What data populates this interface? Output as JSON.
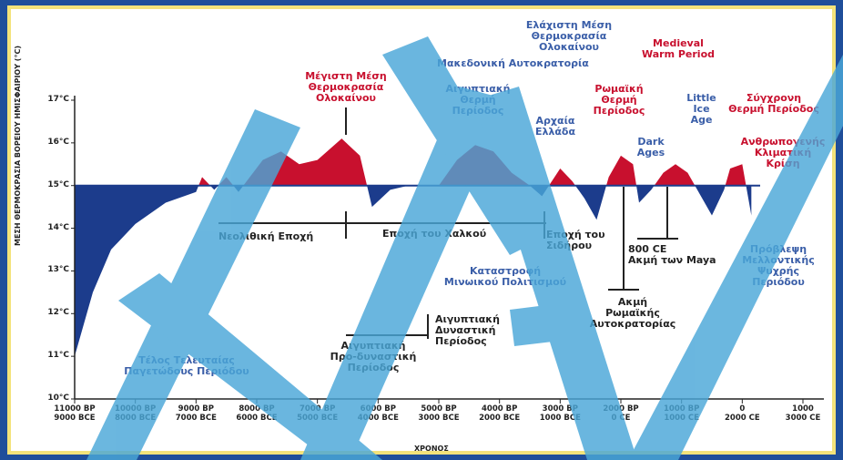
{
  "chart_data": {
    "type": "area",
    "ylabel": "ΜΕΣΗ ΘΕΡΜΟΚΡΑΣΙΑ ΒΟΡΕΙΟΥ ΗΜΙΣΦΑΙΡΙΟΥ (°C)",
    "xlabel": "ΧΡΟΝΟΣ",
    "baseline": 15,
    "colors": {
      "above": "#c8102e",
      "below": "#1c3c8c"
    },
    "xlim": [
      -9000,
      3000
    ],
    "ylim": [
      10,
      17
    ],
    "xticks": [
      {
        "value": -9000,
        "label": "11000 BP\n9000 BCE"
      },
      {
        "value": -8000,
        "label": "10000 BP\n8000 BCE"
      },
      {
        "value": -7000,
        "label": "9000 BP\n7000 BCE"
      },
      {
        "value": -6000,
        "label": "8000 BP\n6000 BCE"
      },
      {
        "value": -5000,
        "label": "7000 BP\n5000 BCE"
      },
      {
        "value": -4000,
        "label": "6000 BP\n4000 BCE"
      },
      {
        "value": -3000,
        "label": "5000 BP\n3000 BCE"
      },
      {
        "value": -2000,
        "label": "4000 BP\n2000 BCE"
      },
      {
        "value": -1000,
        "label": "3000 BP\n1000 BCE"
      },
      {
        "value": 0,
        "label": "2000 BP\n0 CE"
      },
      {
        "value": 1000,
        "label": "1000 BP\n1000 CE"
      },
      {
        "value": 2000,
        "label": "0\n2000 CE"
      },
      {
        "value": 3000,
        "label": "1000\n3000 CE"
      }
    ],
    "yticks": [
      {
        "value": 10,
        "label": "10°C"
      },
      {
        "value": 11,
        "label": "11°C"
      },
      {
        "value": 12,
        "label": "12°C"
      },
      {
        "value": 13,
        "label": "13°C"
      },
      {
        "value": 14,
        "label": "14°C"
      },
      {
        "value": 15,
        "label": "15°C"
      },
      {
        "value": 16,
        "label": "16°C"
      },
      {
        "value": 17,
        "label": "17°C"
      }
    ],
    "x": [
      -9000,
      -8700,
      -8400,
      -8000,
      -7500,
      -7000,
      -6900,
      -6700,
      -6500,
      -6300,
      -5900,
      -5600,
      -5300,
      -5000,
      -4600,
      -4300,
      -4100,
      -3800,
      -3500,
      -3000,
      -2700,
      -2400,
      -2100,
      -1800,
      -1500,
      -1300,
      -1000,
      -800,
      -600,
      -400,
      -200,
      0,
      200,
      300,
      500,
      700,
      900,
      1100,
      1300,
      1500,
      1700,
      1800,
      2000,
      2150
    ],
    "series": [
      {
        "values": [
          11.0,
          12.5,
          13.5,
          14.1,
          14.6,
          14.85,
          15.2,
          14.9,
          15.2,
          14.85,
          15.6,
          15.8,
          15.5,
          15.6,
          16.1,
          15.7,
          14.5,
          14.9,
          15.0,
          15.0,
          15.6,
          15.95,
          15.8,
          15.3,
          15.0,
          14.75,
          15.4,
          15.1,
          14.7,
          14.2,
          15.2,
          15.7,
          15.5,
          14.6,
          14.9,
          15.3,
          15.5,
          15.3,
          14.8,
          14.3,
          14.9,
          15.4,
          15.5,
          14.3
        ]
      }
    ],
    "annotations": [
      {
        "text": "Μέγιστη Μέση\nΘερμοκρασία\nΟλοκαίνου",
        "color": "#c8102e"
      },
      {
        "text": "Αιγυπτιακή\nΘερμή\nΠερίοδος",
        "color": "#3a5ea8"
      },
      {
        "text": "Ελάχιστη Μέση\nΘερμοκρασία Ολοκαίνου",
        "color": "#3a5ea8"
      },
      {
        "text": "Μακεδονική Αυτοκρατορία",
        "color": "#3a5ea8"
      },
      {
        "text": "Medieval\nWarm Period",
        "color": "#c8102e"
      },
      {
        "text": "Ρωμαϊκή\nΘερμή\nΠερίοδος",
        "color": "#c8102e"
      },
      {
        "text": "Αρχαία\nΕλλάδα",
        "color": "#3a5ea8"
      },
      {
        "text": "Dark\nAges",
        "color": "#3a5ea8"
      },
      {
        "text": "Little\nIce\nAge",
        "color": "#3a5ea8"
      },
      {
        "text": "Σύγχρονη\nΘερμή Περίοδος",
        "color": "#c8102e"
      },
      {
        "text": "Ανθρωπογενής\nΚλιματική\nΚρίση",
        "color": "#c8102e"
      },
      {
        "text": "Νεολιθική Εποχή",
        "color": "#222222"
      },
      {
        "text": "Εποχή του Χαλκού",
        "color": "#222222"
      },
      {
        "text": "Εποχή του\nΣιδήρου",
        "color": "#222222"
      },
      {
        "text": "Καταστροφή\nΜινωικού Πολιτισμού",
        "color": "#3a5ea8"
      },
      {
        "text": "Πρόβλεψη\nΜελλοντικής\nΨυχρής\nΠεριόδου",
        "color": "#3a5ea8"
      },
      {
        "text": "800 CE\nΑκμή των Maya",
        "color": "#222222"
      },
      {
        "text": "Ακμή\nΡωμαϊκής\nΑυτοκρατορίας",
        "color": "#222222"
      },
      {
        "text": "Αιγυπτιακή\nΔυναστική\nΠερίοδος",
        "color": "#222222"
      },
      {
        "text": "Αιγυπτιακή\nΠρο-δυναστική\nΠερίοδος",
        "color": "#222222"
      },
      {
        "text": "Τέλος Τελευταίας\nΠαγετώδους Περιόδου",
        "color": "#3a5ea8"
      }
    ]
  }
}
